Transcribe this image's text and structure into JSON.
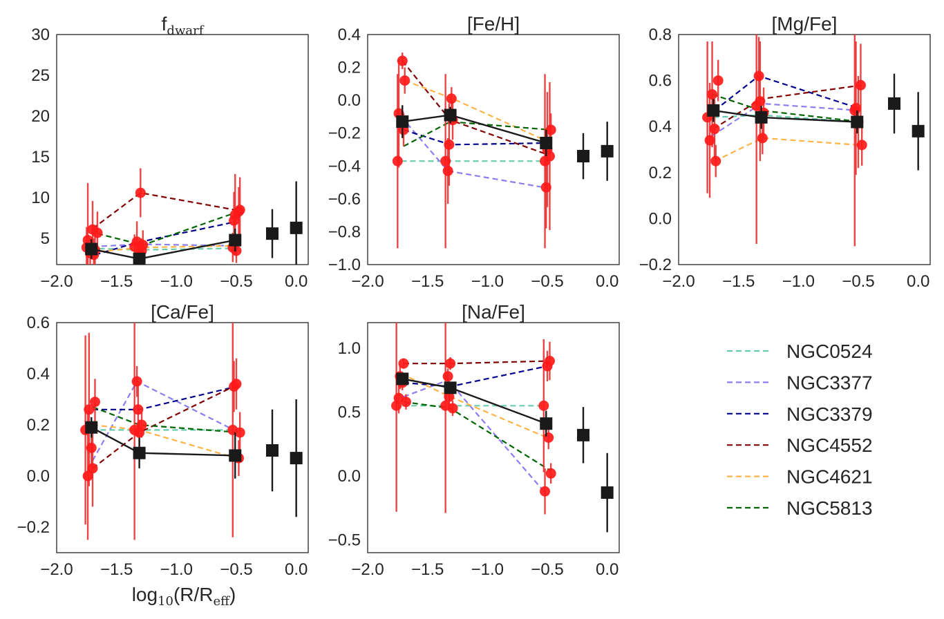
{
  "figure": {
    "xlabel_main": "log",
    "xlabel_sub": "10",
    "xlabel_rest": "(R/R",
    "xlabel_sub2": "eff",
    "xlabel_close": ")"
  },
  "colors": {
    "ngc0524": "#66cdaa",
    "ngc3377": "#8b7cf0",
    "ngc3379": "#00008b",
    "ngc4552": "#800000",
    "ngc4621": "#ffb347",
    "ngc5813": "#006400",
    "points": "#ff1a1a",
    "errorbar": "#e83030",
    "mean": "#1a1a1a"
  },
  "legend": {
    "entries": [
      {
        "label": "NGC0524",
        "color": "#66cdaa"
      },
      {
        "label": "NGC3377",
        "color": "#8b7cf0"
      },
      {
        "label": "NGC3379",
        "color": "#00008b"
      },
      {
        "label": "NGC4552",
        "color": "#800000"
      },
      {
        "label": "NGC4621",
        "color": "#ffb347"
      },
      {
        "label": "NGC5813",
        "color": "#006400"
      }
    ]
  },
  "chart_data": [
    {
      "type": "scatter",
      "title_main": "f",
      "title_sub": "dwarf",
      "xlim": [
        -2.0,
        0.1
      ],
      "ylim": [
        1.8,
        30
      ],
      "xticks": [
        -2.0,
        -1.5,
        -1.0,
        -0.5,
        0.0
      ],
      "xticklabels": [
        "−2.0",
        "−1.5",
        "−1.0",
        "−0.5",
        "0.0"
      ],
      "yticks": [
        5,
        10,
        15,
        20,
        25,
        30
      ],
      "yticklabels": [
        "5",
        "10",
        "15",
        "20",
        "25",
        "30"
      ],
      "series": [
        {
          "name": "NGC0524",
          "x": [
            -1.72,
            -1.31,
            -0.52
          ],
          "y": [
            3.8,
            3.6,
            3.8
          ]
        },
        {
          "name": "NGC3377",
          "x": [
            -1.7,
            -1.3,
            -0.5
          ],
          "y": [
            4.0,
            4.3,
            4.1
          ]
        },
        {
          "name": "NGC3379",
          "x": [
            -1.68,
            -1.33,
            -0.52
          ],
          "y": [
            3.0,
            4.5,
            7.0
          ]
        },
        {
          "name": "NGC4552",
          "x": [
            -1.7,
            -1.3,
            -0.47
          ],
          "y": [
            6.2,
            10.6,
            8.4
          ]
        },
        {
          "name": "NGC4621",
          "x": [
            -1.72,
            -1.28,
            -0.52
          ],
          "y": [
            3.3,
            3.9,
            4.1
          ]
        },
        {
          "name": "NGC5813",
          "x": [
            -1.66,
            -1.28,
            -0.5
          ],
          "y": [
            5.6,
            4.2,
            8.2
          ]
        }
      ],
      "points": {
        "x": [
          -1.75,
          -1.74,
          -1.72,
          -1.7,
          -1.69,
          -1.68,
          -1.66,
          -1.35,
          -1.33,
          -1.31,
          -1.3,
          -1.29,
          -1.28,
          -0.53,
          -0.52,
          -0.51,
          -0.5,
          -0.48,
          -0.47
        ],
        "y": [
          3.9,
          4.8,
          3.2,
          6.1,
          3.0,
          3.6,
          5.7,
          4.0,
          4.6,
          3.0,
          10.6,
          3.5,
          4.2,
          3.9,
          7.2,
          7.9,
          3.5,
          8.3,
          8.5
        ],
        "err": [
          2.5,
          7.0,
          1.8,
          3.5,
          2.0,
          2.2,
          2.6,
          1.5,
          2.5,
          1.2,
          3.0,
          1.5,
          1.8,
          1.8,
          3.5,
          5.0,
          1.5,
          3.0,
          4.0
        ]
      },
      "mean": {
        "x": [
          -1.71,
          -1.31,
          -0.51,
          -0.2,
          0.0
        ],
        "y": [
          3.7,
          2.5,
          4.8,
          5.6,
          6.3
        ],
        "err": [
          1.2,
          0.7,
          1.4,
          3.0,
          5.7
        ]
      }
    },
    {
      "type": "scatter",
      "title_main": "[Fe/H]",
      "xlim": [
        -2.0,
        0.1
      ],
      "ylim": [
        -1.0,
        0.4
      ],
      "xticks": [
        -2.0,
        -1.5,
        -1.0,
        -0.5,
        0.0
      ],
      "xticklabels": [
        "−2.0",
        "−1.5",
        "−1.0",
        "−0.5",
        "0.0"
      ],
      "yticks": [
        -1.0,
        -0.8,
        -0.6,
        -0.4,
        -0.2,
        0.0,
        0.2,
        0.4
      ],
      "yticklabels": [
        "−1.0",
        "−0.8",
        "−0.6",
        "−0.4",
        "−0.2",
        "0.0",
        "0.2",
        "0.4"
      ],
      "series": [
        {
          "name": "NGC0524",
          "x": [
            -1.72,
            -1.31,
            -0.52
          ],
          "y": [
            -0.37,
            -0.37,
            -0.37
          ]
        },
        {
          "name": "NGC3377",
          "x": [
            -1.72,
            -1.33,
            -0.53
          ],
          "y": [
            -0.1,
            -0.43,
            -0.53
          ]
        },
        {
          "name": "NGC3379",
          "x": [
            -1.7,
            -1.31,
            -0.5
          ],
          "y": [
            -0.18,
            -0.27,
            -0.26
          ]
        },
        {
          "name": "NGC4552",
          "x": [
            -1.71,
            -1.31,
            -0.5
          ],
          "y": [
            0.24,
            -0.12,
            -0.33
          ]
        },
        {
          "name": "NGC4621",
          "x": [
            -1.69,
            -1.29,
            -0.5
          ],
          "y": [
            0.12,
            0.01,
            -0.25
          ]
        },
        {
          "name": "NGC5813",
          "x": [
            -1.7,
            -1.31,
            -0.47
          ],
          "y": [
            -0.28,
            -0.13,
            -0.18
          ]
        }
      ],
      "points": {
        "x": [
          -1.75,
          -1.74,
          -1.71,
          -1.7,
          -1.69,
          -1.35,
          -1.33,
          -1.32,
          -1.3,
          -1.29,
          -0.52,
          -0.51,
          -0.5,
          -0.48,
          -0.47
        ],
        "y": [
          -0.37,
          -0.08,
          0.24,
          -0.18,
          0.12,
          -0.37,
          -0.43,
          -0.27,
          0.01,
          -0.12,
          -0.37,
          -0.53,
          -0.3,
          -0.34,
          -0.18
        ],
        "err": [
          0.53,
          0.33,
          0.05,
          0.1,
          0.08,
          0.53,
          0.2,
          0.25,
          0.07,
          0.12,
          0.53,
          0.25,
          0.35,
          0.45,
          0.1
        ]
      },
      "mean": {
        "x": [
          -1.71,
          -1.31,
          -0.51,
          -0.2,
          0.0
        ],
        "y": [
          -0.13,
          -0.09,
          -0.26,
          -0.34,
          -0.31
        ],
        "err": [
          0.1,
          0.05,
          0.08,
          0.14,
          0.18
        ]
      }
    },
    {
      "type": "scatter",
      "title_main": "[Mg/Fe]",
      "xlim": [
        -2.0,
        0.1
      ],
      "ylim": [
        -0.2,
        0.8
      ],
      "xticks": [
        -2.0,
        -1.5,
        -1.0,
        -0.5,
        0.0
      ],
      "xticklabels": [
        "−2.0",
        "−1.5",
        "−1.0",
        "−0.5",
        "0.0"
      ],
      "yticks": [
        -0.2,
        0.0,
        0.2,
        0.4,
        0.6,
        0.8
      ],
      "yticklabels": [
        "−0.2",
        "0.0",
        "0.2",
        "0.4",
        "0.6",
        "0.8"
      ],
      "series": [
        {
          "name": "NGC0524",
          "x": [
            -1.71,
            -1.31,
            -0.52
          ],
          "y": [
            0.44,
            0.45,
            0.42
          ]
        },
        {
          "name": "NGC3377",
          "x": [
            -1.72,
            -1.31,
            -0.5
          ],
          "y": [
            0.36,
            0.5,
            0.47
          ]
        },
        {
          "name": "NGC3379",
          "x": [
            -1.7,
            -1.33,
            -0.5
          ],
          "y": [
            0.47,
            0.62,
            0.48
          ]
        },
        {
          "name": "NGC4552",
          "x": [
            -1.71,
            -1.31,
            -0.47
          ],
          "y": [
            0.39,
            0.52,
            0.58
          ]
        },
        {
          "name": "NGC4621",
          "x": [
            -1.7,
            -1.3,
            -0.5
          ],
          "y": [
            0.25,
            0.35,
            0.32
          ]
        },
        {
          "name": "NGC5813",
          "x": [
            -1.72,
            -1.31,
            -0.47
          ],
          "y": [
            0.54,
            0.47,
            0.42
          ]
        }
      ],
      "points": {
        "x": [
          -1.76,
          -1.74,
          -1.72,
          -1.7,
          -1.69,
          -1.67,
          -1.35,
          -1.33,
          -1.32,
          -1.3,
          -1.29,
          -0.53,
          -0.52,
          -0.5,
          -0.48,
          -0.47
        ],
        "y": [
          0.44,
          0.34,
          0.54,
          0.39,
          0.25,
          0.6,
          0.49,
          0.62,
          0.51,
          0.35,
          0.46,
          0.47,
          0.48,
          0.42,
          0.58,
          0.32
        ],
        "err": [
          0.33,
          0.25,
          0.23,
          0.13,
          0.07,
          0.09,
          0.6,
          0.17,
          0.26,
          0.07,
          0.11,
          0.59,
          0.29,
          0.2,
          0.18,
          0.09
        ]
      },
      "mean": {
        "x": [
          -1.71,
          -1.31,
          -0.51,
          -0.2,
          0.0
        ],
        "y": [
          0.47,
          0.44,
          0.42,
          0.5,
          0.38
        ],
        "err": [
          0.05,
          0.05,
          0.05,
          0.13,
          0.17
        ]
      }
    },
    {
      "type": "scatter",
      "title_main": "[Ca/Fe]",
      "xlim": [
        -2.0,
        0.1
      ],
      "ylim": [
        -0.3,
        0.6
      ],
      "xticks": [
        -2.0,
        -1.5,
        -1.0,
        -0.5,
        0.0
      ],
      "xticklabels": [
        "−2.0",
        "−1.5",
        "−1.0",
        "−0.5",
        "0.0"
      ],
      "yticks": [
        -0.2,
        0.0,
        0.2,
        0.4,
        0.6
      ],
      "yticklabels": [
        "−0.2",
        "0.0",
        "0.2",
        "0.4",
        "0.6"
      ],
      "series": [
        {
          "name": "NGC0524",
          "x": [
            -1.71,
            -1.31,
            -0.52
          ],
          "y": [
            0.18,
            0.18,
            0.18
          ]
        },
        {
          "name": "NGC3377",
          "x": [
            -1.7,
            -1.33,
            -0.52
          ],
          "y": [
            0.06,
            0.37,
            0.18
          ]
        },
        {
          "name": "NGC3379",
          "x": [
            -1.7,
            -1.31,
            -0.5
          ],
          "y": [
            0.26,
            0.26,
            0.35
          ]
        },
        {
          "name": "NGC4552",
          "x": [
            -1.7,
            -1.31,
            -0.48
          ],
          "y": [
            0.03,
            0.17,
            0.36
          ]
        },
        {
          "name": "NGC4621",
          "x": [
            -1.7,
            -1.31,
            -0.5
          ],
          "y": [
            0.2,
            0.18,
            0.07
          ]
        },
        {
          "name": "NGC5813",
          "x": [
            -1.7,
            -1.31,
            -0.47
          ],
          "y": [
            0.27,
            0.2,
            0.17
          ]
        }
      ],
      "points": {
        "x": [
          -1.76,
          -1.74,
          -1.73,
          -1.71,
          -1.7,
          -1.68,
          -1.35,
          -1.33,
          -1.32,
          -1.31,
          -1.29,
          -0.53,
          -0.52,
          -0.5,
          -0.48,
          -0.47
        ],
        "y": [
          0.18,
          0.0,
          0.26,
          0.11,
          0.03,
          0.29,
          0.18,
          0.37,
          0.26,
          0.17,
          0.2,
          0.18,
          0.35,
          0.36,
          0.07,
          0.17
        ],
        "err": [
          0.37,
          0.25,
          0.3,
          0.12,
          0.15,
          0.09,
          0.43,
          0.06,
          0.11,
          0.05,
          0.05,
          0.42,
          0.1,
          0.1,
          0.07,
          0.08
        ]
      },
      "mean": {
        "x": [
          -1.71,
          -1.31,
          -0.51,
          -0.2,
          0.0
        ],
        "y": [
          0.19,
          0.09,
          0.08,
          0.1,
          0.07
        ],
        "err": [
          0.04,
          0.06,
          0.09,
          0.16,
          0.23
        ]
      }
    },
    {
      "type": "scatter",
      "title_main": "[Na/Fe]",
      "xlim": [
        -2.0,
        0.1
      ],
      "ylim": [
        -0.6,
        1.2
      ],
      "xticks": [
        -2.0,
        -1.5,
        -1.0,
        -0.5,
        0.0
      ],
      "xticklabels": [
        "−2.0",
        "−1.5",
        "−1.0",
        "−0.5",
        "0.0"
      ],
      "yticks": [
        -0.5,
        0.0,
        0.5,
        1.0
      ],
      "yticklabels": [
        "−0.5",
        "0.0",
        "0.5",
        "1.0"
      ],
      "series": [
        {
          "name": "NGC0524",
          "x": [
            -1.71,
            -1.31,
            -0.52
          ],
          "y": [
            0.55,
            0.55,
            0.55
          ]
        },
        {
          "name": "NGC3377",
          "x": [
            -1.7,
            -1.33,
            -0.52
          ],
          "y": [
            0.62,
            0.75,
            -0.13
          ]
        },
        {
          "name": "NGC3379",
          "x": [
            -1.7,
            -1.31,
            -0.5
          ],
          "y": [
            0.73,
            0.7,
            0.86
          ]
        },
        {
          "name": "NGC4552",
          "x": [
            -1.7,
            -1.31,
            -0.48
          ],
          "y": [
            0.88,
            0.88,
            0.9
          ]
        },
        {
          "name": "NGC4621",
          "x": [
            -1.72,
            -1.31,
            -0.5
          ],
          "y": [
            0.8,
            0.62,
            0.3
          ]
        },
        {
          "name": "NGC5813",
          "x": [
            -1.7,
            -1.31,
            -0.47
          ],
          "y": [
            0.58,
            0.53,
            0.04
          ]
        }
      ],
      "points": {
        "x": [
          -1.76,
          -1.74,
          -1.73,
          -1.71,
          -1.7,
          -1.68,
          -1.35,
          -1.33,
          -1.32,
          -1.31,
          -1.29,
          -0.53,
          -0.52,
          -0.5,
          -0.49,
          -0.48,
          -0.47
        ],
        "y": [
          0.55,
          0.61,
          0.78,
          0.73,
          0.88,
          0.58,
          0.55,
          0.78,
          0.62,
          0.88,
          0.53,
          0.55,
          -0.12,
          0.86,
          0.3,
          0.9,
          0.02
        ],
        "err": [
          0.83,
          0.12,
          0.1,
          0.06,
          0.04,
          0.06,
          0.84,
          0.06,
          0.08,
          0.05,
          0.06,
          0.52,
          0.18,
          0.12,
          0.09,
          0.15,
          0.08
        ]
      },
      "mean": {
        "x": [
          -1.71,
          -1.31,
          -0.51,
          -0.2,
          0.0
        ],
        "y": [
          0.76,
          0.69,
          0.41,
          0.32,
          -0.13
        ],
        "err": [
          0.04,
          0.04,
          0.1,
          0.22,
          0.31
        ]
      }
    }
  ]
}
